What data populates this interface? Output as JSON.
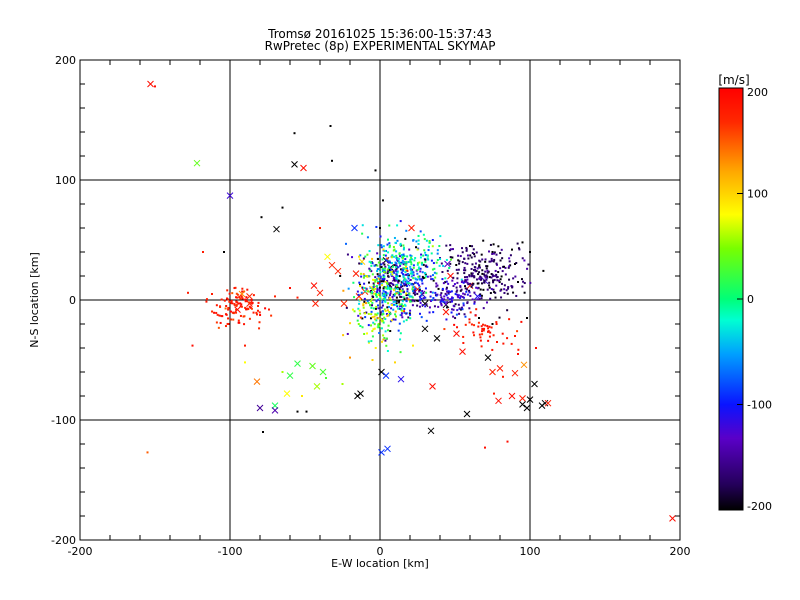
{
  "chart_data": {
    "type": "scatter",
    "title": "Tromsø 20161025 15:36:00-15:37:43",
    "subtitle": "RwPretec (8p) EXPERIMENTAL SKYMAP",
    "xlabel": "E-W location [km]",
    "ylabel": "N-S location [km]",
    "xlim": [
      -200,
      200
    ],
    "ylim": [
      -200,
      200
    ],
    "xticks": [
      "-200",
      "-100",
      "0",
      "100",
      "200"
    ],
    "yticks": [
      "-200",
      "-100",
      "0",
      "100",
      "200"
    ],
    "grid": true,
    "colorbar": {
      "label": "[m/s]",
      "range": [
        -200,
        200
      ],
      "ticks": [
        "200",
        "100",
        "0",
        "-100",
        "-200"
      ],
      "placement": "right"
    },
    "series": [
      {
        "marker": "x",
        "points": [
          [
            -153,
            180,
            190
          ],
          [
            -122,
            114,
            40
          ],
          [
            -57,
            113,
            -200
          ],
          [
            -51,
            110,
            190
          ],
          [
            -100,
            87,
            -120
          ],
          [
            -69,
            59,
            -200
          ],
          [
            -17,
            60,
            -90
          ],
          [
            21,
            60,
            180
          ],
          [
            -35,
            36,
            80
          ],
          [
            -32,
            29,
            170
          ],
          [
            -12,
            32,
            100
          ],
          [
            -16,
            22,
            180
          ],
          [
            -28,
            24,
            175
          ],
          [
            4,
            33,
            -200
          ],
          [
            7,
            27,
            -200
          ],
          [
            -5,
            9,
            150
          ],
          [
            10,
            18,
            -130
          ],
          [
            18,
            14,
            -100
          ],
          [
            -10,
            7,
            170
          ],
          [
            -14,
            3,
            180
          ],
          [
            25,
            9,
            190
          ],
          [
            28,
            5,
            -150
          ],
          [
            45,
            30,
            -130
          ],
          [
            47,
            20,
            190
          ],
          [
            30,
            -3,
            -200
          ],
          [
            44,
            -4,
            -200
          ],
          [
            60,
            12,
            180
          ],
          [
            70,
            16,
            -120
          ],
          [
            65,
            3,
            -110
          ],
          [
            -92,
            5,
            130
          ],
          [
            -87,
            3,
            170
          ],
          [
            -87,
            -3,
            180
          ],
          [
            -95,
            -8,
            190
          ],
          [
            -44,
            12,
            190
          ],
          [
            -40,
            6,
            180
          ],
          [
            -24,
            -3,
            170
          ],
          [
            -43,
            -3,
            180
          ],
          [
            30,
            -24,
            -200
          ],
          [
            38,
            -32,
            -200
          ],
          [
            44,
            -10,
            185
          ],
          [
            51,
            -28,
            190
          ],
          [
            55,
            -43,
            190
          ],
          [
            -45,
            -55,
            40
          ],
          [
            -55,
            -53,
            20
          ],
          [
            -38,
            -60,
            30
          ],
          [
            -42,
            -72,
            60
          ],
          [
            -60,
            -63,
            20
          ],
          [
            -70,
            -88,
            10
          ],
          [
            -62,
            -78,
            80
          ],
          [
            -82,
            -68,
            140
          ],
          [
            -80,
            -90,
            -150
          ],
          [
            -70,
            -92,
            -140
          ],
          [
            -15,
            -80,
            -200
          ],
          [
            -13,
            -78,
            -200
          ],
          [
            1,
            -60,
            -200
          ],
          [
            4,
            -63,
            -90
          ],
          [
            14,
            -66,
            -110
          ],
          [
            35,
            -72,
            190
          ],
          [
            58,
            -95,
            -200
          ],
          [
            34,
            -109,
            -200
          ],
          [
            1,
            -127,
            -90
          ],
          [
            5,
            -124,
            -90
          ],
          [
            72,
            -48,
            -200
          ],
          [
            75,
            -60,
            175
          ],
          [
            80,
            -57,
            180
          ],
          [
            96,
            -54,
            130
          ],
          [
            90,
            -61,
            180
          ],
          [
            88,
            -80,
            190
          ],
          [
            95,
            -82,
            180
          ],
          [
            79,
            -84,
            190
          ],
          [
            103,
            -70,
            -200
          ],
          [
            100,
            -83,
            -200
          ],
          [
            95,
            -87,
            -200
          ],
          [
            98,
            -90,
            -200
          ],
          [
            110,
            -86,
            -200
          ],
          [
            112,
            -86,
            180
          ],
          [
            108,
            -88,
            -200
          ],
          [
            195,
            -182,
            190
          ]
        ]
      },
      {
        "marker": "dot",
        "points": [
          [
            -150,
            178,
            190
          ],
          [
            -57,
            139,
            -200
          ],
          [
            -33,
            145,
            -200
          ],
          [
            -32,
            116,
            -200
          ],
          [
            -3,
            108,
            -200
          ],
          [
            2,
            83,
            -200
          ],
          [
            0,
            60,
            -200
          ],
          [
            -65,
            77,
            -200
          ],
          [
            -79,
            69,
            -200
          ],
          [
            -104,
            40,
            -200
          ],
          [
            -118,
            40,
            180
          ],
          [
            -128,
            6,
            180
          ],
          [
            -112,
            5,
            180
          ],
          [
            -90,
            -38,
            180
          ],
          [
            -155,
            -127,
            150
          ],
          [
            -90,
            -52,
            80
          ],
          [
            -78,
            -110,
            -200
          ],
          [
            -55,
            -93,
            -200
          ],
          [
            -49,
            -93,
            -200
          ],
          [
            -15,
            -80,
            -200
          ],
          [
            70,
            -123,
            190
          ],
          [
            85,
            -118,
            190
          ],
          [
            76,
            -78,
            180
          ],
          [
            82,
            -64,
            180
          ],
          [
            -52,
            -80,
            90
          ],
          [
            -20,
            -48,
            130
          ],
          [
            -5,
            -50,
            100
          ],
          [
            10,
            -52,
            100
          ],
          [
            22,
            -38,
            90
          ],
          [
            -36,
            -65,
            30
          ],
          [
            -25,
            -70,
            60
          ],
          [
            -65,
            -60,
            60
          ],
          [
            40,
            35,
            -150
          ],
          [
            60,
            45,
            -200
          ],
          [
            75,
            40,
            -200
          ],
          [
            90,
            30,
            -200
          ],
          [
            92,
            15,
            -200
          ],
          [
            95,
            48,
            -200
          ],
          [
            100,
            40,
            -200
          ],
          [
            88,
            42,
            -200
          ],
          [
            98,
            -15,
            -200
          ],
          [
            54,
            -8,
            -200
          ],
          [
            66,
            -15,
            -200
          ],
          [
            75,
            -20,
            -200
          ],
          [
            78,
            -35,
            185
          ],
          [
            90,
            -30,
            185
          ],
          [
            92,
            -45,
            190
          ],
          [
            104,
            -40,
            190
          ],
          [
            -125,
            -38,
            190
          ],
          [
            -107,
            -13,
            185
          ],
          [
            -101,
            -20,
            190
          ],
          [
            -82,
            -12,
            175
          ],
          [
            -70,
            3,
            175
          ],
          [
            -60,
            10,
            190
          ],
          [
            -55,
            2,
            180
          ],
          [
            -40,
            60,
            170
          ]
        ],
        "clusters": [
          {
            "cx": 10,
            "cy": 12,
            "sx": 12,
            "sy": 16,
            "n": 450,
            "v": -110,
            "vs": 70,
            "seed": 11
          },
          {
            "cx": 18,
            "cy": 35,
            "sx": 14,
            "sy": 12,
            "n": 160,
            "v": -20,
            "vs": 40,
            "seed": 23
          },
          {
            "cx": 0,
            "cy": 5,
            "sx": 10,
            "sy": 14,
            "n": 120,
            "v": 40,
            "vs": 60,
            "seed": 37
          },
          {
            "cx": 70,
            "cy": 22,
            "sx": 14,
            "sy": 12,
            "n": 240,
            "v": -175,
            "vs": 20,
            "seed": 41
          },
          {
            "cx": 48,
            "cy": 2,
            "sx": 10,
            "sy": 8,
            "n": 130,
            "v": -130,
            "vs": 25,
            "seed": 53
          },
          {
            "cx": -95,
            "cy": -5,
            "sx": 8,
            "sy": 8,
            "n": 110,
            "v": 180,
            "vs": 12,
            "seed": 67
          },
          {
            "cx": -2,
            "cy": -20,
            "sx": 7,
            "sy": 12,
            "n": 60,
            "v": 60,
            "vs": 40,
            "seed": 71
          },
          {
            "cx": 72,
            "cy": -25,
            "sx": 12,
            "sy": 8,
            "n": 50,
            "v": 180,
            "vs": 10,
            "seed": 83
          }
        ]
      }
    ]
  }
}
